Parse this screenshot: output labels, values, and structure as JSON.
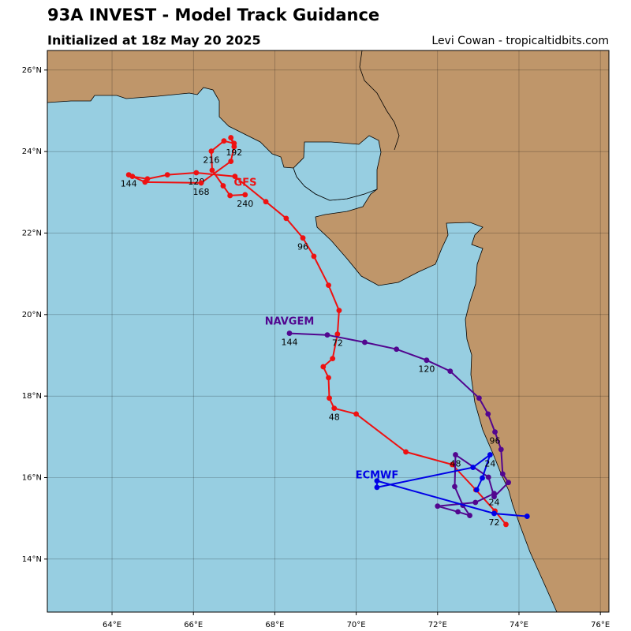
{
  "chart_data": {
    "type": "map",
    "title": "93A INVEST - Model Track Guidance",
    "subtitle": "Initialized at 18z May 20 2025",
    "credit": "Levi Cowan - tropicaltidbits.com",
    "xlim": [
      62.41,
      76.21
    ],
    "ylim": [
      12.7,
      26.48
    ],
    "xticks": [
      {
        "value": 64,
        "label": "64°E"
      },
      {
        "value": 66,
        "label": "66°E"
      },
      {
        "value": 68,
        "label": "68°E"
      },
      {
        "value": 70,
        "label": "70°E"
      },
      {
        "value": 72,
        "label": "72°E"
      },
      {
        "value": 74,
        "label": "74°E"
      },
      {
        "value": 76,
        "label": "76°E"
      }
    ],
    "yticks": [
      {
        "value": 14,
        "label": "14°N"
      },
      {
        "value": 16,
        "label": "16°N"
      },
      {
        "value": 18,
        "label": "18°N"
      },
      {
        "value": 20,
        "label": "20°N"
      },
      {
        "value": 22,
        "label": "22°N"
      },
      {
        "value": 24,
        "label": "24°N"
      },
      {
        "value": 26,
        "label": "26°N"
      }
    ],
    "grid": true,
    "series": [
      {
        "name": "GFS",
        "color": "#ee1111",
        "x": [
          73.68,
          73.41,
          72.94,
          72.36,
          71.22,
          70.0,
          69.46,
          69.34,
          69.32,
          69.19,
          69.42,
          69.54,
          69.58,
          69.32,
          68.96,
          68.69,
          68.28,
          67.78,
          67.02,
          66.07,
          65.36,
          64.87,
          64.5,
          64.41,
          64.81,
          66.19,
          66.92,
          67.0,
          66.92,
          67.0,
          66.75,
          66.44,
          66.46,
          66.73,
          66.9,
          67.27
        ],
        "values": [
          14.85,
          15.18,
          15.7,
          16.32,
          16.63,
          17.56,
          17.7,
          17.95,
          18.45,
          18.72,
          18.92,
          19.52,
          20.1,
          20.72,
          21.43,
          21.88,
          22.36,
          22.77,
          23.39,
          23.48,
          23.43,
          23.33,
          23.39,
          23.43,
          23.25,
          23.23,
          23.76,
          24.12,
          24.34,
          24.2,
          24.26,
          24.01,
          23.54,
          23.16,
          22.92,
          22.94
        ],
        "point_labels": [
          null,
          null,
          null,
          null,
          null,
          null,
          "48",
          null,
          null,
          null,
          null,
          "72",
          null,
          null,
          null,
          "96",
          null,
          null,
          null,
          "120",
          null,
          null,
          null,
          "144",
          null,
          "168",
          null,
          null,
          null,
          "192",
          null,
          "216",
          null,
          null,
          null,
          "240"
        ]
      },
      {
        "name": "NAVGEM",
        "color": "#52068f",
        "x": [
          73.39,
          72.93,
          72.0,
          72.5,
          72.79,
          72.62,
          72.42,
          72.44,
          73.25,
          73.39,
          73.74,
          73.6,
          73.56,
          73.41,
          73.24,
          73.02,
          72.31,
          71.73,
          70.99,
          70.21,
          69.29,
          68.36
        ],
        "values": [
          15.61,
          15.39,
          15.3,
          15.16,
          15.07,
          15.32,
          15.78,
          16.56,
          16.01,
          15.53,
          15.88,
          16.09,
          16.69,
          17.12,
          17.56,
          17.95,
          18.61,
          18.88,
          19.15,
          19.32,
          19.5,
          19.54
        ],
        "point_labels": [
          "24",
          null,
          null,
          null,
          null,
          null,
          null,
          "48",
          null,
          null,
          null,
          null,
          null,
          "96",
          null,
          null,
          null,
          "120",
          null,
          null,
          null,
          "144"
        ]
      },
      {
        "name": "ECMWF",
        "color": "#0000e6",
        "x": [
          72.96,
          73.1,
          73.29,
          72.87,
          70.51,
          70.51,
          73.39,
          74.2
        ],
        "values": [
          15.7,
          15.99,
          16.56,
          16.25,
          15.76,
          15.92,
          15.12,
          15.05
        ],
        "point_labels": [
          null,
          null,
          "24",
          null,
          null,
          null,
          "72",
          null
        ]
      }
    ]
  }
}
